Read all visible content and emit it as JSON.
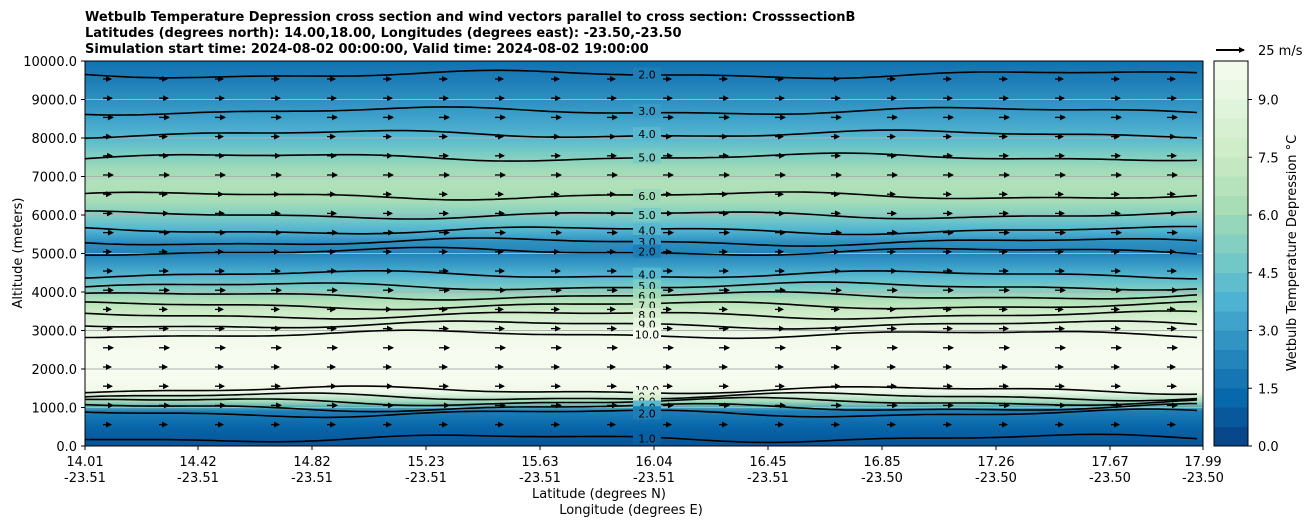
{
  "chart_data": {
    "type": "heatmap",
    "title_lines": [
      "Wetbulb Temperature Depression cross section and wind vectors parallel to cross section: CrosssectionB",
      "Latitudes (degrees north): 14.00,18.00, Longitudes (degrees east): -23.50,-23.50",
      "Simulation start time: 2024-08-02 00:00:00, Valid time: 2024-08-02 19:00:00"
    ],
    "ylabel": "Altitude (meters)",
    "xlabel_line1": "Latitude (degrees N)",
    "xlabel_line2": "Longitude (degrees E)",
    "ylim": [
      0,
      10000
    ],
    "yticks": [
      "0.0",
      "1000.0",
      "2000.0",
      "3000.0",
      "4000.0",
      "5000.0",
      "6000.0",
      "7000.0",
      "8000.0",
      "9000.0",
      "10000.0"
    ],
    "xticks_lat": [
      "14.01",
      "14.42",
      "14.82",
      "15.23",
      "15.63",
      "16.04",
      "16.45",
      "16.85",
      "17.26",
      "17.67",
      "17.99"
    ],
    "xticks_lon": [
      "-23.51",
      "-23.51",
      "-23.51",
      "-23.51",
      "-23.51",
      "-23.51",
      "-23.51",
      "-23.50",
      "-23.50",
      "-23.50",
      "-23.50"
    ],
    "colorbar": {
      "label": "Wetbulb Temperature Depression $^\\circ$C",
      "range": [
        0,
        10
      ],
      "ticks": [
        "0.0",
        "1.5",
        "3.0",
        "4.5",
        "6.0",
        "7.5",
        "9.0"
      ],
      "colormap": [
        "#084081",
        "#0868ac",
        "#2b8cbe",
        "#4eb3d3",
        "#7bccc4",
        "#a8ddb5",
        "#ccebc5",
        "#e0f3db",
        "#f7fcf0"
      ]
    },
    "quiver_key": {
      "label": "25 m/s"
    },
    "layers": [
      {
        "z": 0,
        "value": 0.6
      },
      {
        "z": 500,
        "value": 1.2
      },
      {
        "z": 900,
        "value": 2.0
      },
      {
        "z": 1150,
        "value": 6.0
      },
      {
        "z": 1400,
        "value": 9.5
      },
      {
        "z": 1700,
        "value": 10.0
      },
      {
        "z": 2500,
        "value": 10.0
      },
      {
        "z": 2900,
        "value": 9.5
      },
      {
        "z": 3200,
        "value": 8.5
      },
      {
        "z": 3500,
        "value": 7.5
      },
      {
        "z": 3800,
        "value": 6.5
      },
      {
        "z": 4100,
        "value": 5.0
      },
      {
        "z": 4400,
        "value": 4.0
      },
      {
        "z": 4700,
        "value": 3.0
      },
      {
        "z": 5000,
        "value": 2.2
      },
      {
        "z": 5300,
        "value": 2.6
      },
      {
        "z": 5600,
        "value": 3.8
      },
      {
        "z": 6000,
        "value": 5.2
      },
      {
        "z": 6400,
        "value": 6.3
      },
      {
        "z": 6800,
        "value": 6.6
      },
      {
        "z": 7200,
        "value": 6.0
      },
      {
        "z": 7600,
        "value": 5.0
      },
      {
        "z": 8000,
        "value": 4.0
      },
      {
        "z": 8500,
        "value": 3.2
      },
      {
        "z": 9000,
        "value": 2.6
      },
      {
        "z": 9500,
        "value": 2.0
      },
      {
        "z": 10000,
        "value": 1.6
      }
    ],
    "contours": [
      {
        "label": "2.0",
        "z": 9650
      },
      {
        "label": "3.0",
        "z": 8700
      },
      {
        "label": "4.0",
        "z": 8100
      },
      {
        "label": "5.0",
        "z": 7500
      },
      {
        "label": "6.0",
        "z": 6500
      },
      {
        "label": "5.0",
        "z": 6000
      },
      {
        "label": "4.0",
        "z": 5600
      },
      {
        "label": "3.0",
        "z": 5300
      },
      {
        "label": "2.0",
        "z": 5050
      },
      {
        "label": "4.0",
        "z": 4450
      },
      {
        "label": "5.0",
        "z": 4150
      },
      {
        "label": "6.0",
        "z": 3900
      },
      {
        "label": "7.0",
        "z": 3650
      },
      {
        "label": "8.0",
        "z": 3400
      },
      {
        "label": "9.0",
        "z": 3150
      },
      {
        "label": "10.0",
        "z": 2900
      },
      {
        "label": "10.0",
        "z": 1450
      },
      {
        "label": "9.0",
        "z": 1280
      },
      {
        "label": "8.0",
        "z": 1150
      },
      {
        "label": "4.0",
        "z": 1000
      },
      {
        "label": "2.0",
        "z": 850
      },
      {
        "label": "1.0",
        "z": 200
      }
    ]
  }
}
